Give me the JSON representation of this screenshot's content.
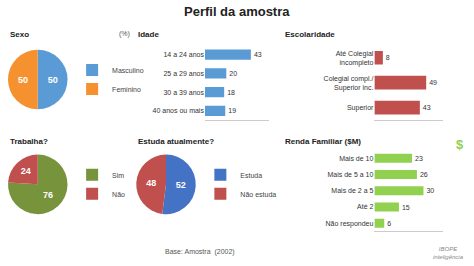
{
  "chart_data": [
    {
      "type": "pie",
      "title": "Sexo",
      "categories": [
        "Masculino",
        "Feminino"
      ],
      "values": [
        50,
        50
      ],
      "colors": [
        "#5b9bd5",
        "#f5922f"
      ],
      "data_labels": true,
      "legend": "right",
      "annotations": [
        "Perfil da amostra",
        "(%)"
      ]
    },
    {
      "type": "bar",
      "orientation": "horizontal",
      "title": "Idade",
      "categories": [
        "14 a 24 anos",
        "25 a 29 anos",
        "30 a 39 anos",
        "40 anos ou mais"
      ],
      "values": [
        43,
        20,
        18,
        19
      ],
      "color": "#5b9bd5",
      "xlim": [
        0,
        60
      ],
      "data_labels": true,
      "tick_labels": "y",
      "grid": false
    },
    {
      "type": "bar",
      "orientation": "horizontal",
      "title": "Escolaridade",
      "categories": [
        "Até Colegial\nincompleto",
        "Colegial compl./\nSuperior inc.",
        "Superior"
      ],
      "values": [
        8,
        49,
        43
      ],
      "color": "#c0504d",
      "xlim": [
        0,
        65
      ],
      "data_labels": true,
      "tick_labels": "y",
      "grid": false
    },
    {
      "type": "pie",
      "title": "Trabalha?",
      "categories": [
        "Sim",
        "Não"
      ],
      "values": [
        76,
        24
      ],
      "colors": [
        "#77933c",
        "#c0504d"
      ],
      "data_labels": true,
      "legend": "right"
    },
    {
      "type": "pie",
      "title": "Estuda atualmente?",
      "categories": [
        "Estuda",
        "Não estuda"
      ],
      "values": [
        52,
        48
      ],
      "colors": [
        "#4472c4",
        "#c0504d"
      ],
      "data_labels": true,
      "legend": "right",
      "annotations": [
        "Base: Amostra  (2002)"
      ]
    },
    {
      "type": "bar",
      "orientation": "horizontal",
      "title": "Renda Familiar ($M)",
      "categories": [
        "Mais de 10",
        "Mais de 5 a 10",
        "Mais de 2 a 5",
        "Até 2",
        "Não respondeu"
      ],
      "values": [
        23,
        26,
        30,
        15,
        6
      ],
      "color": "#92d050",
      "xlim": [
        0,
        42
      ],
      "data_labels": true,
      "tick_labels": "y",
      "grid": false,
      "annotations": [
        "$",
        "IBOPE\ninteligência"
      ]
    }
  ]
}
